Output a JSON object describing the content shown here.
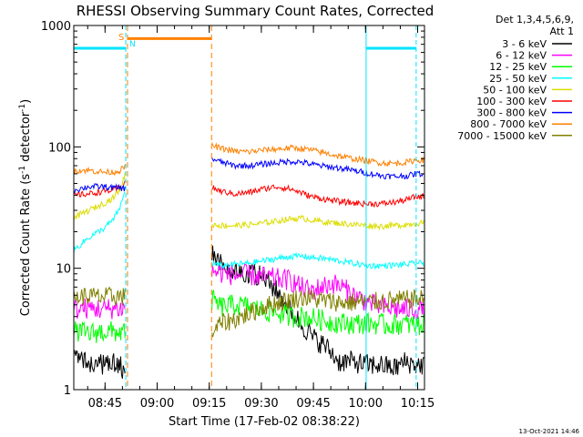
{
  "colors": {
    "background": "#ffffff",
    "axis": "#000000",
    "satellite_marker": "#00e5ff",
    "saa_marker": "#ff8000"
  },
  "chart_data": {
    "type": "line",
    "title": "RHESSI Observing Summary Count Rates, Corrected",
    "xlabel": "Start Time (17-Feb-02 08:38:22)",
    "ylabel_main": "Corrected Count Rate (s",
    "ylabel_sup1": "-1",
    "ylabel_mid": " detector",
    "ylabel_sup2": "-1",
    "ylabel_end": ")",
    "yscale": "log",
    "xlim_minutes": [
      -2.37,
      98.6
    ],
    "ylim": [
      1,
      1000
    ],
    "x_ticks": [
      {
        "minute": 6.63,
        "label": "08:45"
      },
      {
        "minute": 21.63,
        "label": "09:00"
      },
      {
        "minute": 36.63,
        "label": "09:15"
      },
      {
        "minute": 51.63,
        "label": "09:30"
      },
      {
        "minute": 66.63,
        "label": "09:45"
      },
      {
        "minute": 81.63,
        "label": "10:00"
      },
      {
        "minute": 96.63,
        "label": "10:15"
      }
    ],
    "y_ticks": [
      {
        "value": 1,
        "label": "1"
      },
      {
        "value": 10,
        "label": "10"
      },
      {
        "value": 100,
        "label": "100"
      },
      {
        "value": 1000,
        "label": "1000"
      }
    ],
    "legend_title": [
      "Det 1,3,4,5,6,9,",
      "Att 1"
    ],
    "legend_placement": "right",
    "markers": {
      "night_lines_minutes": [
        -2.37,
        12.6,
        81.8,
        96.2
      ],
      "saa_lines_minutes": [
        13.1,
        37.3
      ],
      "saa_label": "S",
      "night_label": "N",
      "flag_level": 650
    },
    "timestamp": "13-Oct-2021 14:46",
    "series": [
      {
        "name": "3 - 6 keV",
        "color": "#000000",
        "points": [
          [
            -2.4,
            2.2
          ],
          [
            2,
            1.6
          ],
          [
            6,
            1.6
          ],
          [
            10,
            1.7
          ],
          [
            12.6,
            1.4
          ],
          [
            37.5,
            14
          ],
          [
            40,
            11
          ],
          [
            43,
            10
          ],
          [
            46,
            9.5
          ],
          [
            50,
            9
          ],
          [
            53,
            8
          ],
          [
            56,
            6.5
          ],
          [
            60,
            4.5
          ],
          [
            63,
            3.5
          ],
          [
            67,
            2.6
          ],
          [
            70,
            2.3
          ],
          [
            74,
            1.7
          ],
          [
            78,
            1.7
          ],
          [
            82,
            1.6
          ],
          [
            86,
            1.6
          ],
          [
            90,
            1.5
          ],
          [
            93,
            1.7
          ],
          [
            96,
            1.6
          ]
        ]
      },
      {
        "name": "6 - 12 keV",
        "color": "#ff00ff",
        "points": [
          [
            -2.4,
            4.6
          ],
          [
            2,
            4.7
          ],
          [
            6,
            4.6
          ],
          [
            10,
            4.7
          ],
          [
            12.6,
            4.6
          ],
          [
            37.5,
            9.5
          ],
          [
            40,
            9.2
          ],
          [
            44,
            8.8
          ],
          [
            48,
            8.8
          ],
          [
            52,
            8.5
          ],
          [
            56,
            8.2
          ],
          [
            60,
            8.0
          ],
          [
            63,
            7.0
          ],
          [
            66,
            6.5
          ],
          [
            69,
            7.0
          ],
          [
            72,
            7.5
          ],
          [
            75,
            7.0
          ],
          [
            78,
            6.0
          ],
          [
            81,
            5.5
          ],
          [
            84,
            5.0
          ],
          [
            88,
            4.7
          ],
          [
            92,
            4.6
          ],
          [
            96,
            4.6
          ]
        ]
      },
      {
        "name": "12 - 25 keV",
        "color": "#00ff00",
        "points": [
          [
            -2.4,
            3.0
          ],
          [
            2,
            2.9
          ],
          [
            6,
            3.0
          ],
          [
            10,
            3.0
          ],
          [
            12.6,
            2.9
          ],
          [
            37.5,
            5.5
          ],
          [
            40,
            4.8
          ],
          [
            44,
            5.0
          ],
          [
            48,
            4.8
          ],
          [
            52,
            4.5
          ],
          [
            56,
            4.3
          ],
          [
            60,
            4.0
          ],
          [
            64,
            4.0
          ],
          [
            68,
            3.8
          ],
          [
            72,
            3.6
          ],
          [
            76,
            3.5
          ],
          [
            80,
            3.5
          ],
          [
            84,
            3.5
          ],
          [
            88,
            3.4
          ],
          [
            92,
            3.5
          ],
          [
            96,
            3.4
          ]
        ]
      },
      {
        "name": "25 - 50 keV",
        "color": "#00ffff",
        "points": [
          [
            -2.4,
            14
          ],
          [
            2,
            18
          ],
          [
            6,
            21
          ],
          [
            9,
            25
          ],
          [
            11,
            32
          ],
          [
            12.6,
            45
          ],
          [
            37.5,
            11
          ],
          [
            40,
            10.5
          ],
          [
            44,
            10.8
          ],
          [
            48,
            11.0
          ],
          [
            52,
            11.5
          ],
          [
            56,
            12.0
          ],
          [
            60,
            12.5
          ],
          [
            63,
            12.6
          ],
          [
            66,
            12.3
          ],
          [
            70,
            12.0
          ],
          [
            74,
            11.5
          ],
          [
            78,
            11.0
          ],
          [
            82,
            10.5
          ],
          [
            86,
            10.5
          ],
          [
            90,
            10.6
          ],
          [
            94,
            10.8
          ],
          [
            96,
            11.0
          ]
        ]
      },
      {
        "name": "50 - 100 keV",
        "color": "#dddd00",
        "points": [
          [
            -2.4,
            26
          ],
          [
            2,
            30
          ],
          [
            6,
            34
          ],
          [
            9,
            38
          ],
          [
            11,
            45
          ],
          [
            12.6,
            62
          ],
          [
            37.5,
            23
          ],
          [
            40,
            22.5
          ],
          [
            44,
            22.5
          ],
          [
            48,
            22.8
          ],
          [
            52,
            23.5
          ],
          [
            56,
            24.5
          ],
          [
            60,
            25.5
          ],
          [
            63,
            25.8
          ],
          [
            66,
            25.0
          ],
          [
            70,
            24.0
          ],
          [
            74,
            23.5
          ],
          [
            78,
            23.0
          ],
          [
            82,
            22.5
          ],
          [
            86,
            22.2
          ],
          [
            90,
            22.5
          ],
          [
            94,
            23.0
          ],
          [
            96,
            23.5
          ]
        ]
      },
      {
        "name": "100 - 300 keV",
        "color": "#ff0000",
        "points": [
          [
            -2.4,
            40
          ],
          [
            2,
            41
          ],
          [
            6,
            43
          ],
          [
            9,
            44
          ],
          [
            11,
            46
          ],
          [
            12.6,
            52
          ],
          [
            37.5,
            46
          ],
          [
            40,
            43
          ],
          [
            44,
            41
          ],
          [
            48,
            42
          ],
          [
            52,
            45
          ],
          [
            56,
            47
          ],
          [
            60,
            45
          ],
          [
            63,
            42
          ],
          [
            66,
            39
          ],
          [
            70,
            37
          ],
          [
            74,
            35.5
          ],
          [
            78,
            34.5
          ],
          [
            82,
            34
          ],
          [
            86,
            34
          ],
          [
            90,
            35
          ],
          [
            94,
            37
          ],
          [
            96,
            39
          ]
        ]
      },
      {
        "name": "300 - 800 keV",
        "color": "#0000ff",
        "points": [
          [
            -2.4,
            44
          ],
          [
            2,
            47
          ],
          [
            6,
            47
          ],
          [
            9,
            46
          ],
          [
            11,
            46
          ],
          [
            12.6,
            45
          ],
          [
            37.5,
            80
          ],
          [
            40,
            75
          ],
          [
            44,
            70
          ],
          [
            48,
            70
          ],
          [
            52,
            72
          ],
          [
            56,
            74
          ],
          [
            60,
            76
          ],
          [
            63,
            75
          ],
          [
            66,
            72
          ],
          [
            70,
            69
          ],
          [
            74,
            67
          ],
          [
            78,
            64
          ],
          [
            82,
            61
          ],
          [
            86,
            58
          ],
          [
            90,
            57
          ],
          [
            94,
            58
          ],
          [
            96,
            60
          ]
        ]
      },
      {
        "name": "800 - 7000 keV",
        "color": "#ff8000",
        "points": [
          [
            -2.4,
            64
          ],
          [
            2,
            64
          ],
          [
            6,
            62
          ],
          [
            9,
            62
          ],
          [
            11,
            64
          ],
          [
            12.6,
            70
          ],
          [
            37.5,
            103
          ],
          [
            40,
            97
          ],
          [
            44,
            92
          ],
          [
            48,
            91
          ],
          [
            52,
            94
          ],
          [
            56,
            96
          ],
          [
            60,
            98
          ],
          [
            63,
            97
          ],
          [
            66,
            94
          ],
          [
            70,
            89
          ],
          [
            74,
            84
          ],
          [
            78,
            80
          ],
          [
            82,
            77
          ],
          [
            86,
            74
          ],
          [
            90,
            73
          ],
          [
            94,
            75
          ],
          [
            96,
            78
          ]
        ]
      },
      {
        "name": "7000 - 15000 keV",
        "color": "#808000",
        "points": [
          [
            -2.4,
            5.8
          ],
          [
            2,
            5.9
          ],
          [
            6,
            5.8
          ],
          [
            10,
            5.9
          ],
          [
            12.6,
            5.8
          ],
          [
            37.5,
            3.0
          ],
          [
            40,
            3.5
          ],
          [
            44,
            3.8
          ],
          [
            48,
            4.2
          ],
          [
            52,
            4.8
          ],
          [
            56,
            5.2
          ],
          [
            60,
            5.5
          ],
          [
            64,
            5.8
          ],
          [
            68,
            5.5
          ],
          [
            72,
            5.3
          ],
          [
            76,
            5.2
          ],
          [
            80,
            5.3
          ],
          [
            84,
            5.3
          ],
          [
            88,
            5.4
          ],
          [
            92,
            5.5
          ],
          [
            96,
            5.6
          ]
        ]
      }
    ]
  }
}
